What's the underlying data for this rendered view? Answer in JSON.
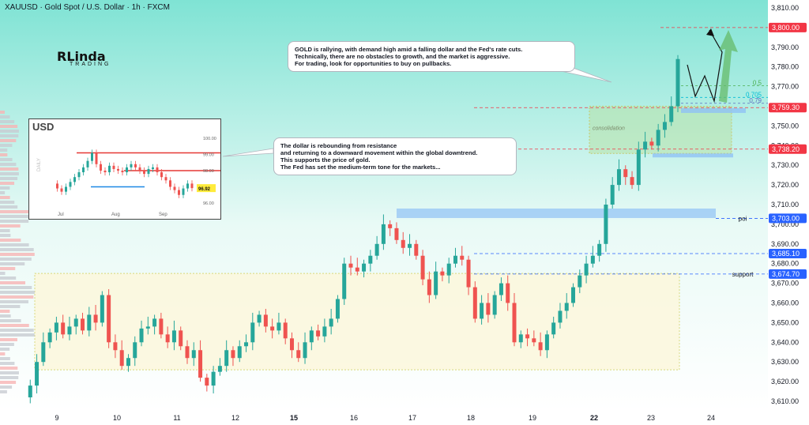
{
  "header": {
    "title": "XAUUSD · Gold Spot / U.S. Dollar · 1h · FXCM"
  },
  "logo": {
    "main": "RLinda",
    "sub": "TRADING"
  },
  "callouts": {
    "gold": "GOLD is rallying, with demand high amid a falling dollar and the Fed's rate cuts.\nTechnically, there are no obstacles to growth, and the market is aggressive.\nFor trading, look for opportunities to buy on pullbacks.",
    "dollar": "The dollar is rebounding from resistance\nand returning to a downward movement within the global downtrend.\nThis supports the price of gold.\nThe Fed has set the medium-term tone for the markets..."
  },
  "colors": {
    "up": "#26a69a",
    "down": "#ef5350",
    "red_tag": "#f23645",
    "blue_tag": "#2962ff",
    "zone_green": "#b8e2a8",
    "zone_yellow": "#fbf7dc",
    "fib_green": "#4caf50",
    "fib_teal": "#00bcd4",
    "fib_purple": "#5c6bc0"
  },
  "chart_data": {
    "type": "line",
    "title": "XAUUSD · Gold Spot / U.S. Dollar · 1h · FXCM",
    "xlabel": "",
    "ylabel": "",
    "x_ticks": [
      "9",
      "10",
      "11",
      "12",
      "15",
      "16",
      "17",
      "18",
      "19",
      "22",
      "23",
      "24"
    ],
    "y_ticks": [
      3610,
      3620,
      3630,
      3640,
      3650,
      3660,
      3670,
      3680,
      3690,
      3700,
      3710,
      3720,
      3730,
      3740,
      3750,
      3760,
      3770,
      3780,
      3790,
      3800,
      3810
    ],
    "ylim": [
      3605,
      3815
    ],
    "series": [
      {
        "values": [
          3612,
          3618,
          3630,
          3640,
          3645,
          3650,
          3644,
          3648,
          3652,
          3646,
          3654,
          3650,
          3664,
          3640,
          3636,
          3628,
          3632,
          3640,
          3647,
          3648,
          3652,
          3644,
          3640,
          3646,
          3638,
          3632,
          3636,
          3622,
          3618,
          3625,
          3628,
          3636,
          3632,
          3638,
          3640,
          3650,
          3654,
          3648,
          3646,
          3650,
          3642,
          3636,
          3632,
          3640,
          3646,
          3643,
          3648,
          3652,
          3662,
          3680,
          3678,
          3676,
          3680,
          3684,
          3690,
          3700,
          3698,
          3692,
          3688,
          3690,
          3684,
          3672,
          3664,
          3676,
          3674,
          3680,
          3684,
          3682,
          3668,
          3652,
          3660,
          3654,
          3664,
          3670,
          3660,
          3640,
          3644,
          3642,
          3640,
          3636,
          3644,
          3650,
          3656,
          3660,
          3668,
          3674,
          3680,
          3684,
          3690,
          3710,
          3720,
          3728,
          3724,
          3720,
          3738,
          3742,
          3740,
          3748,
          3752,
          3760,
          3784
        ]
      }
    ],
    "levels": [
      {
        "label": "3,800.00",
        "value": 3800,
        "color": "red"
      },
      {
        "label": "3,759.30",
        "value": 3759.3,
        "color": "red"
      },
      {
        "label": "3,738.20",
        "value": 3738.2,
        "color": "red"
      },
      {
        "label": "3,703.00",
        "value": 3703,
        "color": "blue",
        "name": "poi"
      },
      {
        "label": "3,685.10",
        "value": 3685.1,
        "color": "blue"
      },
      {
        "label": "3,674.70",
        "value": 3674.7,
        "color": "blue",
        "name": "support"
      }
    ],
    "fib": [
      {
        "label": "0.5",
        "value": 3770.5
      },
      {
        "label": "0.705",
        "value": 3764.5
      },
      {
        "label": "0.79",
        "value": 3761.5
      }
    ],
    "zones": [
      {
        "label": "consolidation",
        "from": 3736,
        "to": 3760
      },
      {
        "label": "",
        "from": 3626,
        "to": 3675
      }
    ]
  },
  "inset": {
    "title": "USD",
    "side_label": "DAILY",
    "x_ticks": [
      "Jul",
      "Aug",
      "Sep"
    ],
    "y_ticks": [
      "100.00",
      "99.00",
      "98.00",
      "97.00",
      "96.00"
    ],
    "current": "96.92",
    "values": [
      97.2,
      96.9,
      96.7,
      97.0,
      97.3,
      97.6,
      97.9,
      98.2,
      98.6,
      99.1,
      98.4,
      98.0,
      97.9,
      98.3,
      98.1,
      98.0,
      97.9,
      98.2,
      98.4,
      98.2,
      98.0,
      97.8,
      98.1,
      98.2,
      97.9,
      97.6,
      97.4,
      97.0,
      96.8,
      96.5,
      96.9,
      97.2,
      96.92
    ]
  }
}
